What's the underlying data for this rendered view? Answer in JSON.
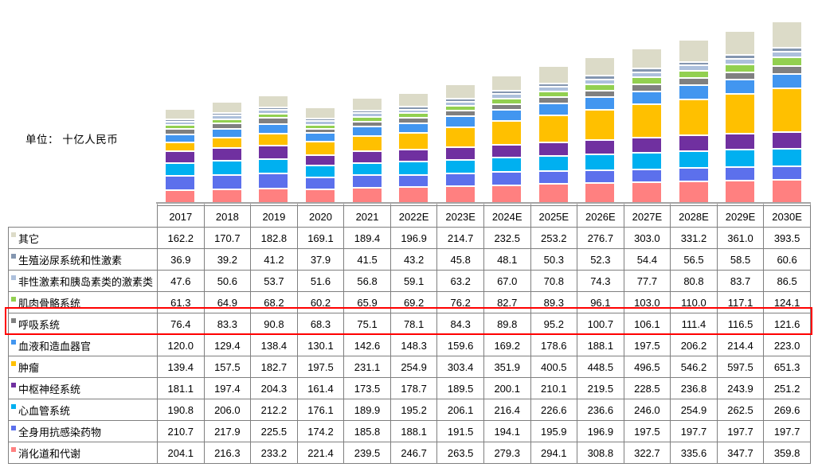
{
  "unit_label": "单位： 十亿人民币",
  "chart_data": {
    "type": "bar",
    "stacked": true,
    "title": "",
    "xlabel": "",
    "ylabel": "十亿人民币",
    "value_axis_visible": false,
    "grid": false,
    "legend_position": "table-left-column",
    "axis_color": "#a6a6a6",
    "highlight": {
      "series": "呼吸系统",
      "color": "#ff0000"
    },
    "categories": [
      "2017",
      "2018",
      "2019",
      "2020",
      "2021",
      "2022E",
      "2023E",
      "2024E",
      "2025E",
      "2026E",
      "2027E",
      "2028E",
      "2029E",
      "2030E"
    ],
    "series": [
      {
        "name": "其它",
        "color": "#dcdbc8",
        "values": [
          162.2,
          170.7,
          182.8,
          169.1,
          189.4,
          196.9,
          214.7,
          232.5,
          253.2,
          276.7,
          303.0,
          331.2,
          361.0,
          393.5
        ]
      },
      {
        "name": "生殖泌尿系统和性激素",
        "color": "#8496b0",
        "values": [
          36.9,
          39.2,
          41.2,
          37.9,
          41.5,
          43.2,
          45.8,
          48.1,
          50.3,
          52.3,
          54.4,
          56.5,
          58.5,
          60.6
        ]
      },
      {
        "name": "非性激素和胰岛素类的激素类",
        "color": "#adc0dc",
        "values": [
          47.6,
          50.6,
          53.7,
          51.6,
          56.8,
          59.1,
          63.2,
          67.0,
          70.8,
          74.3,
          77.7,
          80.8,
          83.7,
          86.5
        ]
      },
      {
        "name": "肌肉骨骼系统",
        "color": "#92d050",
        "values": [
          61.3,
          64.9,
          68.2,
          60.2,
          65.9,
          69.2,
          76.2,
          82.7,
          89.3,
          96.1,
          103.0,
          110.0,
          117.1,
          124.1
        ]
      },
      {
        "name": "呼吸系统",
        "color": "#808080",
        "highlighted": true,
        "values": [
          76.4,
          83.3,
          90.8,
          68.3,
          75.1,
          78.1,
          84.3,
          89.8,
          95.2,
          100.7,
          106.1,
          111.4,
          116.5,
          121.6
        ]
      },
      {
        "name": "血液和造血器官",
        "color": "#4296f0",
        "values": [
          120.0,
          129.4,
          138.4,
          130.1,
          142.6,
          148.3,
          159.6,
          169.2,
          178.6,
          188.1,
          197.5,
          206.2,
          214.4,
          223.0
        ]
      },
      {
        "name": "肿瘤",
        "color": "#ffc000",
        "values": [
          139.4,
          157.5,
          182.7,
          197.5,
          231.1,
          254.9,
          303.4,
          351.9,
          400.5,
          448.5,
          496.5,
          546.2,
          597.5,
          651.3
        ]
      },
      {
        "name": "中枢神经系统",
        "color": "#7030a0",
        "values": [
          181.1,
          197.4,
          204.3,
          161.4,
          173.5,
          178.7,
          189.5,
          200.1,
          210.1,
          219.5,
          228.5,
          236.8,
          243.9,
          251.2
        ]
      },
      {
        "name": "心血管系统",
        "color": "#00b0f0",
        "values": [
          190.8,
          206.0,
          212.2,
          176.1,
          189.9,
          195.2,
          206.1,
          216.4,
          226.6,
          236.6,
          246.0,
          254.9,
          262.5,
          269.6
        ]
      },
      {
        "name": "全身用抗感染药物",
        "color": "#5c70ec",
        "values": [
          210.7,
          217.9,
          225.5,
          174.2,
          185.8,
          188.1,
          191.5,
          194.1,
          195.9,
          196.9,
          197.5,
          197.7,
          197.7,
          197.7
        ]
      },
      {
        "name": "消化道和代谢",
        "color": "#ff8080",
        "values": [
          204.1,
          216.3,
          233.2,
          221.4,
          239.5,
          246.7,
          263.5,
          279.3,
          294.1,
          308.8,
          322.7,
          335.6,
          347.7,
          359.8
        ]
      }
    ],
    "stacking_note": "table rows listed top-to-bottom equal stack segments top-to-bottom; 消化道和代谢 is the bottom segment"
  }
}
